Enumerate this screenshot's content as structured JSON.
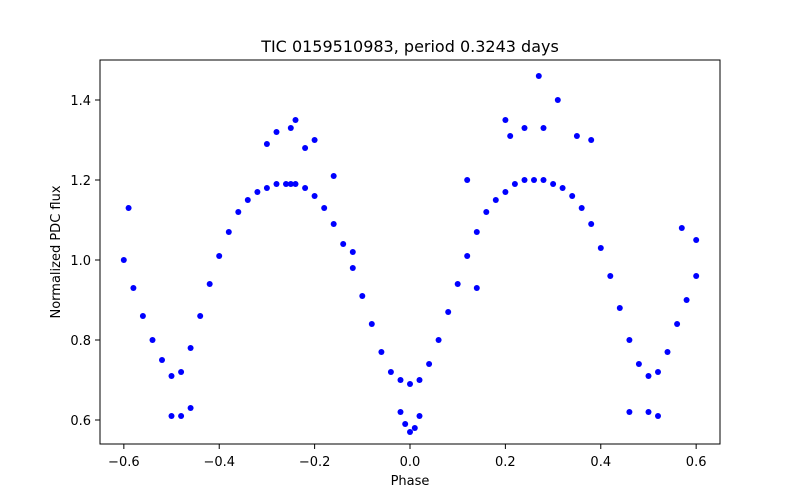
{
  "chart_data": {
    "type": "scatter",
    "title": "TIC 0159510983, period 0.3243 days",
    "xlabel": "Phase",
    "ylabel": "Normalized PDC flux",
    "xlim": [
      -0.65,
      0.65
    ],
    "ylim": [
      0.54,
      1.5
    ],
    "x_ticks": [
      -0.6,
      -0.4,
      -0.2,
      0.0,
      0.2,
      0.4,
      0.6
    ],
    "x_tick_labels": [
      "−0.6",
      "−0.4",
      "−0.2",
      "0.0",
      "0.2",
      "0.4",
      "0.6"
    ],
    "y_ticks": [
      0.6,
      0.8,
      1.0,
      1.2,
      1.4
    ],
    "y_tick_labels": [
      "0.6",
      "0.8",
      "1.0",
      "1.2",
      "1.4"
    ],
    "grid": false,
    "marker_color": "#0000ff",
    "series": [
      {
        "x": [
          -0.6,
          -0.58,
          -0.56,
          -0.54,
          -0.52,
          -0.5,
          -0.48,
          -0.46,
          -0.44,
          -0.42,
          -0.4,
          -0.38,
          -0.36,
          -0.34,
          -0.32,
          -0.3,
          -0.28,
          -0.26,
          -0.25,
          -0.24,
          -0.22,
          -0.2,
          -0.18,
          -0.16,
          -0.14,
          -0.12,
          -0.1,
          -0.08,
          -0.06,
          -0.04,
          -0.02,
          0.0,
          0.02,
          0.04,
          0.06,
          0.08,
          0.1,
          0.12,
          0.14,
          0.16,
          0.18,
          0.2,
          0.22,
          0.24,
          0.26,
          0.28,
          0.3,
          0.32,
          0.34,
          0.36,
          0.38,
          0.4,
          0.42,
          0.44,
          0.46,
          0.48,
          0.5,
          0.52,
          0.54,
          0.56,
          0.58,
          0.6
        ],
        "y": [
          1.0,
          0.93,
          0.86,
          0.8,
          0.75,
          0.71,
          0.72,
          0.78,
          0.86,
          0.94,
          1.01,
          1.07,
          1.12,
          1.15,
          1.17,
          1.18,
          1.19,
          1.19,
          1.19,
          1.19,
          1.18,
          1.16,
          1.13,
          1.09,
          1.04,
          0.98,
          0.91,
          0.84,
          0.77,
          0.72,
          0.7,
          0.69,
          0.7,
          0.74,
          0.8,
          0.87,
          0.94,
          1.01,
          1.07,
          1.12,
          1.15,
          1.17,
          1.19,
          1.2,
          1.2,
          1.2,
          1.19,
          1.18,
          1.16,
          1.13,
          1.09,
          1.03,
          0.96,
          0.88,
          0.8,
          0.74,
          0.71,
          0.72,
          0.77,
          0.84,
          0.9,
          0.96
        ]
      },
      {
        "x": [
          -0.59,
          -0.5,
          -0.48,
          -0.46,
          -0.3,
          -0.28,
          -0.25,
          -0.24,
          -0.22,
          -0.2,
          -0.16,
          -0.12,
          -0.02,
          -0.01,
          0.0,
          0.01,
          0.02,
          0.12,
          0.14,
          0.2,
          0.21,
          0.24,
          0.27,
          0.28,
          0.31,
          0.35,
          0.38,
          0.46,
          0.5,
          0.52,
          0.57,
          0.6
        ],
        "y": [
          1.13,
          0.61,
          0.61,
          0.63,
          1.29,
          1.32,
          1.33,
          1.35,
          1.28,
          1.3,
          1.21,
          1.02,
          0.62,
          0.59,
          0.57,
          0.58,
          0.61,
          1.2,
          0.93,
          1.35,
          1.31,
          1.33,
          1.46,
          1.33,
          1.4,
          1.31,
          1.3,
          0.62,
          0.62,
          0.61,
          1.08,
          1.05
        ]
      }
    ]
  }
}
